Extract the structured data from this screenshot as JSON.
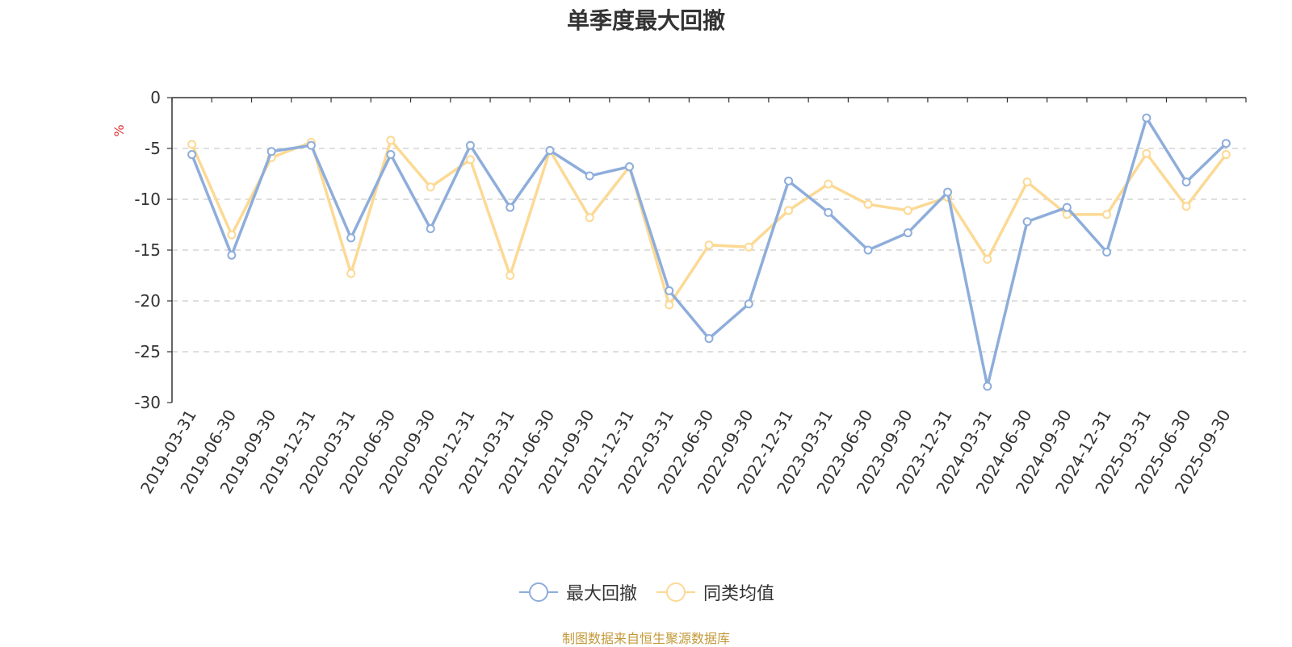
{
  "title": "单季度最大回撤",
  "source_note": "制图数据来自恒生聚源数据库",
  "colors": {
    "series_1": "#8eaddb",
    "series_2": "#fcd994",
    "unit": "#e03030",
    "axis": "#333333",
    "grid": "#cccccc"
  },
  "chart_data": {
    "type": "line",
    "title": "单季度最大回撤",
    "ylabel": "%",
    "ylim": [
      -30,
      0
    ],
    "yticks": [
      0,
      -5,
      -10,
      -15,
      -20,
      -25,
      -30
    ],
    "grid": "horizontal-dashed",
    "legend_position": "bottom-center",
    "categories": [
      "2019-03-31",
      "2019-06-30",
      "2019-09-30",
      "2019-12-31",
      "2020-03-31",
      "2020-06-30",
      "2020-09-30",
      "2020-12-31",
      "2021-03-31",
      "2021-06-30",
      "2021-09-30",
      "2021-12-31",
      "2022-03-31",
      "2022-06-30",
      "2022-09-30",
      "2022-12-31",
      "2023-03-31",
      "2023-06-30",
      "2023-09-30",
      "2023-12-31",
      "2024-03-31",
      "2024-06-30",
      "2024-09-30",
      "2024-12-31",
      "2025-03-31",
      "2025-06-30",
      "2025-09-30"
    ],
    "series": [
      {
        "name": "最大回撤",
        "values": [
          -5.6,
          -15.5,
          -5.3,
          -4.7,
          -13.8,
          -5.6,
          -12.9,
          -4.7,
          -10.8,
          -5.2,
          -7.7,
          -6.8,
          -19.0,
          -23.7,
          -20.3,
          -8.2,
          -11.3,
          -15.0,
          -13.3,
          -9.3,
          -28.4,
          -12.2,
          -10.8,
          -15.2,
          -2.0,
          -8.3,
          -4.5
        ]
      },
      {
        "name": "同类均值",
        "values": [
          -4.6,
          -13.5,
          -5.9,
          -4.4,
          -17.3,
          -4.2,
          -8.8,
          -6.1,
          -17.5,
          -5.2,
          -11.8,
          -6.8,
          -20.4,
          -14.5,
          -14.7,
          -11.1,
          -8.5,
          -10.5,
          -11.1,
          -9.8,
          -15.9,
          -8.3,
          -11.5,
          -11.5,
          -5.5,
          -10.7,
          -5.6
        ]
      }
    ]
  }
}
